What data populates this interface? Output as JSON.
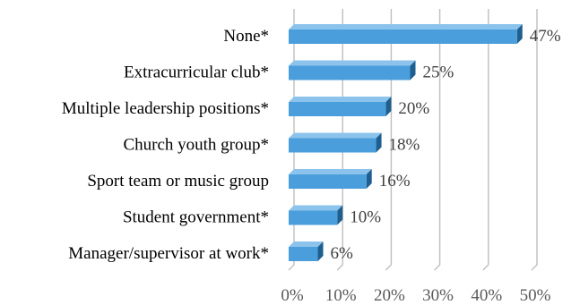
{
  "chart_data": {
    "type": "bar",
    "orientation": "horizontal",
    "style": "3d",
    "categories": [
      "None*",
      "Extracurricular club*",
      "Multiple leadership positions*",
      "Church youth group*",
      "Sport team or music group",
      "Student government*",
      "Manager/supervisor at work*"
    ],
    "values": [
      47,
      25,
      20,
      18,
      16,
      10,
      6
    ],
    "value_labels": [
      "47%",
      "25%",
      "20%",
      "18%",
      "16%",
      "10%",
      "6%"
    ],
    "x_ticks": [
      "0%",
      "10%",
      "20%",
      "30%",
      "40%",
      "50%"
    ],
    "xlim": [
      0,
      50
    ],
    "grid": true,
    "legend": "none",
    "colors": {
      "bar_front": "#4A9EDB",
      "bar_top": "#8CC3EC",
      "bar_side": "#1F5F8F",
      "gridline": "#BFBFBF"
    }
  }
}
